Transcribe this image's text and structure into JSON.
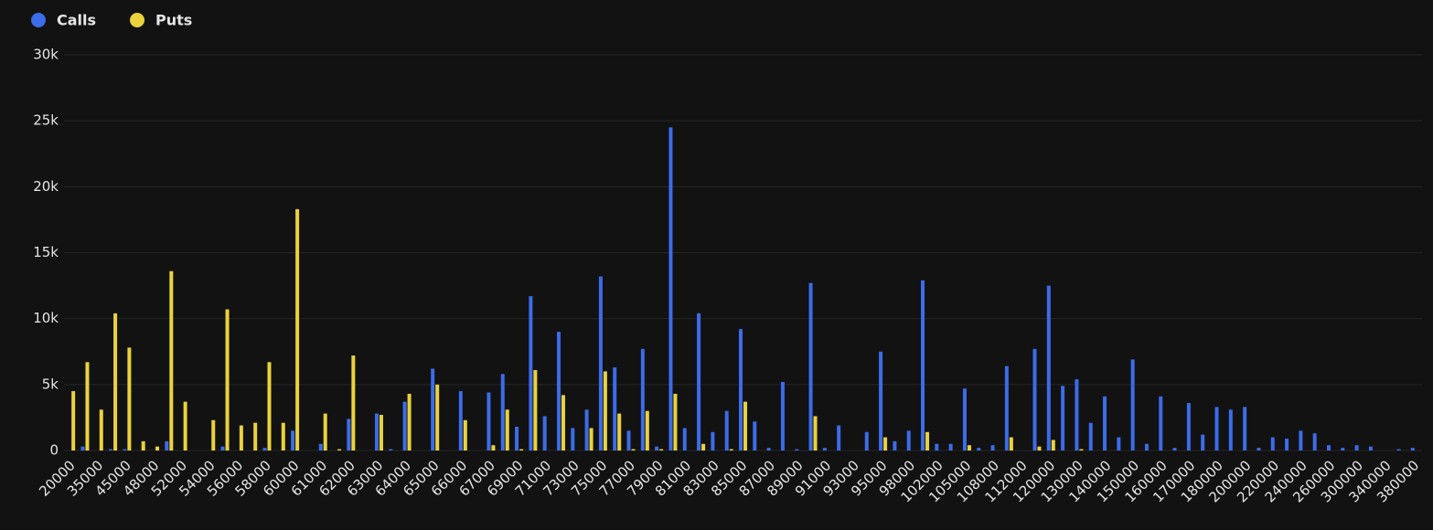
{
  "chart_data": {
    "type": "bar",
    "categories": [
      "20000",
      null,
      "35000",
      null,
      "45000",
      null,
      "48000",
      null,
      "52000",
      null,
      "54000",
      null,
      "56000",
      null,
      "58000",
      null,
      "60000",
      null,
      "61000",
      null,
      "62000",
      null,
      "63000",
      null,
      "64000",
      null,
      "65000",
      null,
      "66000",
      null,
      "67000",
      null,
      "69000",
      null,
      "71000",
      null,
      "73000",
      null,
      "75000",
      null,
      "77000",
      null,
      "79000",
      null,
      "81000",
      null,
      "83000",
      null,
      "85000",
      null,
      "87000",
      null,
      "89000",
      null,
      "91000",
      null,
      "93000",
      null,
      "95000",
      null,
      "98000",
      null,
      "102000",
      null,
      "105000",
      null,
      "108000",
      null,
      "112000",
      null,
      "120000",
      null,
      "130000",
      null,
      "140000",
      null,
      "150000",
      null,
      "160000",
      null,
      "170000",
      null,
      "180000",
      null,
      "200000",
      null,
      "220000",
      null,
      "240000",
      null,
      "260000",
      null,
      "300000",
      null,
      "340000",
      null,
      "380000"
    ],
    "series": [
      {
        "name": "Calls",
        "color": "#3b6cea",
        "values": [
          0,
          300,
          0,
          100,
          100,
          0,
          0,
          700,
          0,
          0,
          0,
          300,
          0,
          0,
          200,
          0,
          1500,
          0,
          500,
          0,
          2400,
          0,
          2800,
          100,
          3700,
          0,
          6200,
          0,
          4500,
          0,
          4400,
          5800,
          1800,
          11700,
          2600,
          9000,
          1700,
          3100,
          13200,
          6300,
          1500,
          7700,
          300,
          24500,
          1700,
          10400,
          1400,
          3000,
          9200,
          2200,
          200,
          5200,
          100,
          12700,
          200,
          1900,
          0,
          1400,
          7500,
          700,
          1500,
          12900,
          500,
          500,
          4700,
          200,
          400,
          6400,
          0,
          7700,
          12500,
          4900,
          5400,
          2100,
          4100,
          1000,
          6900,
          500,
          4100,
          200,
          3600,
          1200,
          3300,
          3100,
          3300,
          200,
          1000,
          900,
          1500,
          1300,
          400,
          200,
          400,
          300,
          0,
          100,
          200
        ]
      },
      {
        "name": "Puts",
        "color": "#e9d23c",
        "values": [
          4500,
          6700,
          3100,
          10400,
          7800,
          700,
          300,
          13600,
          3700,
          0,
          2300,
          10700,
          1900,
          2100,
          6700,
          2100,
          18300,
          0,
          2800,
          100,
          7200,
          0,
          2700,
          0,
          4300,
          0,
          5000,
          0,
          2300,
          0,
          400,
          3100,
          100,
          6100,
          0,
          4200,
          0,
          1700,
          6000,
          2800,
          100,
          3000,
          100,
          4300,
          0,
          500,
          0,
          100,
          3700,
          0,
          0,
          0,
          0,
          2600,
          0,
          0,
          0,
          0,
          1000,
          0,
          0,
          1400,
          0,
          0,
          400,
          0,
          0,
          1000,
          0,
          300,
          800,
          0,
          100,
          0,
          0,
          0,
          0,
          0,
          0,
          0,
          0,
          0,
          0,
          0,
          0,
          0,
          0,
          0,
          0,
          0,
          0,
          0,
          0,
          0,
          0,
          0,
          0
        ]
      }
    ],
    "ylim": [
      0,
      30000
    ],
    "yticks": [
      0,
      {
        "value": 5000,
        "label": "5k"
      },
      {
        "value": 10000,
        "label": "10k"
      },
      {
        "value": 15000,
        "label": "15k"
      },
      {
        "value": 20000,
        "label": "20k"
      },
      {
        "value": 25000,
        "label": "25k"
      },
      {
        "value": 30000,
        "label": "30k"
      }
    ],
    "grid": true
  }
}
